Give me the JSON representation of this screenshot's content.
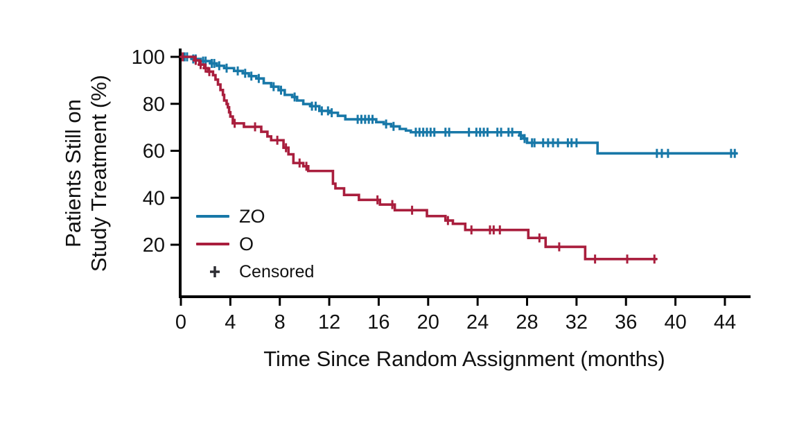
{
  "figure": {
    "background": "#ffffff",
    "axis_color": "#000000",
    "text_color": "#111111"
  },
  "chart_data": {
    "type": "line",
    "subtype": "kaplan-meier-step-curves",
    "title": "",
    "xlabel": "Time Since Random Assignment (months)",
    "ylabel": "Patients Still on Study Treatment (%)",
    "ylabel_line1": "Patients Still on",
    "ylabel_line2": "Study Treatment (%)",
    "xlim": [
      0,
      46
    ],
    "ylim": [
      0,
      103
    ],
    "x_ticks": [
      0,
      4,
      8,
      12,
      16,
      20,
      24,
      28,
      32,
      36,
      40,
      44
    ],
    "y_ticks": [
      100,
      80,
      60,
      40,
      20
    ],
    "grid": false,
    "axis_color": "#000000",
    "legend_position": "inside-lower-left",
    "legend": [
      {
        "label": "ZO",
        "color": "#1878a8",
        "marker": "line"
      },
      {
        "label": "O",
        "color": "#a91e3d",
        "marker": "line"
      },
      {
        "label": "Censored",
        "color": "#2d2d33",
        "marker": "plus"
      }
    ],
    "series": [
      {
        "name": "ZO",
        "color": "#1878a8",
        "end_t": 45.0,
        "steps": [
          [
            0,
            100
          ],
          [
            0.9,
            99.1
          ],
          [
            1.6,
            98.2
          ],
          [
            2.4,
            97.2
          ],
          [
            2.9,
            96.2
          ],
          [
            3.5,
            95.2
          ],
          [
            4.3,
            94.0
          ],
          [
            5.0,
            93.0
          ],
          [
            5.5,
            91.8
          ],
          [
            6.1,
            90.8
          ],
          [
            6.7,
            88.8
          ],
          [
            7.3,
            87.3
          ],
          [
            7.9,
            85.8
          ],
          [
            8.4,
            83.8
          ],
          [
            9.0,
            82.9
          ],
          [
            9.4,
            81.4
          ],
          [
            9.9,
            79.9
          ],
          [
            10.5,
            79.0
          ],
          [
            11.2,
            77.0
          ],
          [
            12.0,
            76.2
          ],
          [
            12.7,
            74.9
          ],
          [
            13.3,
            73.4
          ],
          [
            15.8,
            72.2
          ],
          [
            16.4,
            71.4
          ],
          [
            17.0,
            70.4
          ],
          [
            17.7,
            69.3
          ],
          [
            18.2,
            68.6
          ],
          [
            18.6,
            67.9
          ],
          [
            27.4,
            66.5
          ],
          [
            27.7,
            65.2
          ],
          [
            28.0,
            63.4
          ],
          [
            33.7,
            58.9
          ]
        ],
        "censored_t": [
          0.3,
          0.5,
          1.0,
          1.2,
          1.8,
          2.0,
          2.5,
          2.7,
          3.1,
          3.7,
          4.6,
          5.2,
          5.7,
          6.3,
          7.5,
          8.1,
          9.2,
          10.6,
          10.9,
          11.4,
          11.9,
          12.2,
          14.3,
          14.6,
          14.9,
          15.2,
          15.5,
          16.6,
          17.2,
          19.0,
          19.3,
          19.6,
          19.9,
          20.2,
          20.5,
          21.4,
          21.7,
          23.3,
          23.9,
          24.2,
          24.5,
          24.8,
          25.6,
          25.9,
          26.5,
          26.8,
          27.5,
          27.8,
          28.4,
          28.6,
          29.3,
          29.7,
          30.1,
          30.5,
          31.3,
          31.6,
          32.0,
          38.5,
          38.9,
          39.4,
          44.5,
          44.8
        ]
      },
      {
        "name": "O",
        "color": "#a91e3d",
        "end_t": 38.5,
        "steps": [
          [
            0,
            100
          ],
          [
            1.1,
            98.5
          ],
          [
            1.5,
            96.7
          ],
          [
            1.9,
            95.2
          ],
          [
            2.2,
            93.7
          ],
          [
            2.6,
            92.2
          ],
          [
            2.8,
            90.3
          ],
          [
            3.0,
            88.2
          ],
          [
            3.2,
            85.9
          ],
          [
            3.4,
            83.8
          ],
          [
            3.5,
            81.4
          ],
          [
            3.7,
            79.9
          ],
          [
            3.8,
            78.5
          ],
          [
            3.9,
            76.4
          ],
          [
            4.0,
            74.6
          ],
          [
            4.2,
            71.7
          ],
          [
            5.1,
            70.2
          ],
          [
            6.5,
            68.1
          ],
          [
            7.0,
            66.1
          ],
          [
            7.3,
            64.5
          ],
          [
            8.3,
            61.3
          ],
          [
            8.7,
            58.5
          ],
          [
            9.1,
            54.8
          ],
          [
            9.9,
            53.4
          ],
          [
            10.3,
            51.4
          ],
          [
            12.3,
            46.0
          ],
          [
            12.5,
            44.0
          ],
          [
            13.2,
            41.2
          ],
          [
            14.4,
            39.1
          ],
          [
            16.1,
            37.1
          ],
          [
            17.3,
            34.7
          ],
          [
            19.9,
            32.2
          ],
          [
            21.4,
            30.3
          ],
          [
            22.0,
            28.9
          ],
          [
            23.0,
            26.3
          ],
          [
            28.1,
            22.9
          ],
          [
            29.5,
            19.1
          ],
          [
            32.7,
            13.9
          ]
        ],
        "censored_t": [
          0.15,
          1.2,
          1.6,
          2.0,
          2.3,
          4.35,
          6.0,
          7.8,
          8.5,
          9.6,
          10.15,
          15.9,
          17.1,
          18.7,
          21.6,
          23.5,
          25.0,
          25.3,
          25.8,
          29.0,
          30.6,
          33.5,
          36.1,
          38.3
        ]
      }
    ]
  }
}
